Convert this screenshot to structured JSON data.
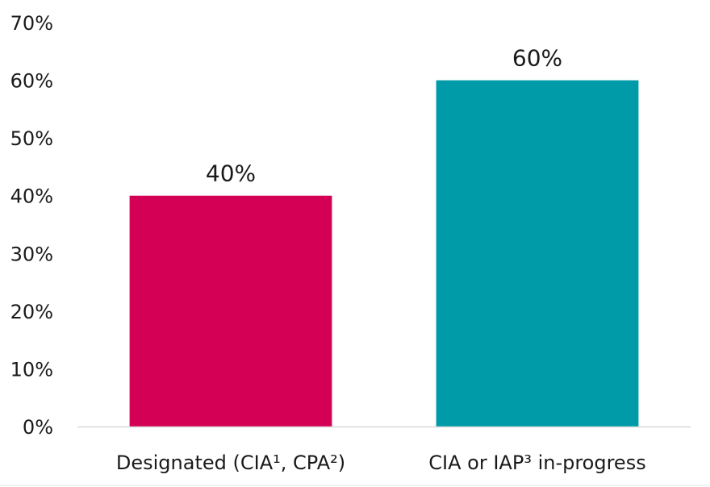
{
  "chart_data": {
    "type": "bar",
    "categories": [
      "Designated (CIA¹, CPA²)",
      "CIA or IAP³ in-progress"
    ],
    "values": [
      40,
      60
    ],
    "data_labels": [
      "40%",
      "60%"
    ],
    "colors": [
      "#d40055",
      "#009ba8"
    ],
    "ylim": [
      0,
      70
    ],
    "y_ticks": [
      {
        "value": 0,
        "label": "0%"
      },
      {
        "value": 10,
        "label": "10%"
      },
      {
        "value": 20,
        "label": "20%"
      },
      {
        "value": 30,
        "label": "30%"
      },
      {
        "value": 40,
        "label": "40%"
      },
      {
        "value": 50,
        "label": "50%"
      },
      {
        "value": 60,
        "label": "60%"
      },
      {
        "value": 70,
        "label": "70%"
      }
    ],
    "grid": false,
    "legend": "none"
  }
}
